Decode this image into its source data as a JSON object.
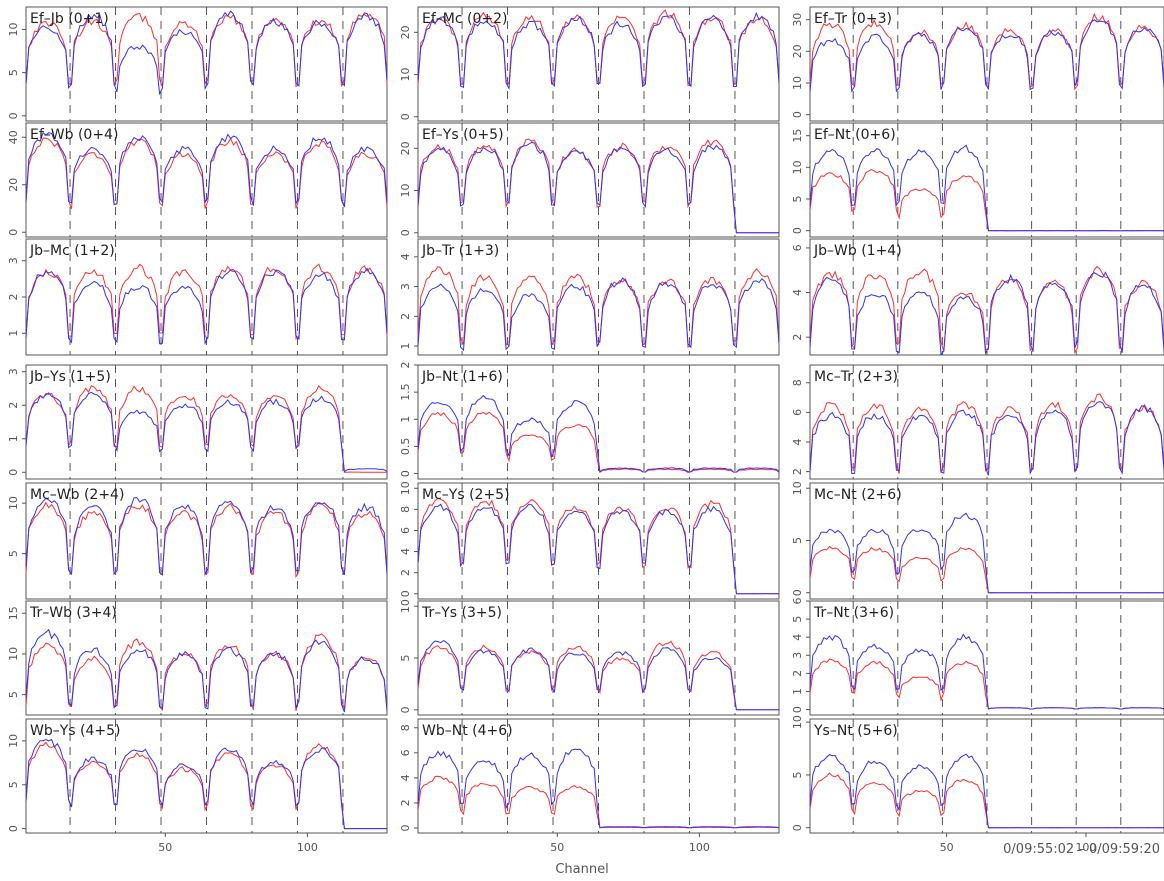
{
  "figure": {
    "xlabel": "Channel",
    "time_range": "0/09:55:02 – 0/09:59:20"
  },
  "colors": {
    "series_a": "#ff3030",
    "series_b": "#3030ff",
    "frame": "#555555",
    "divider": "#555555"
  },
  "chart_data": [
    {
      "type": "line",
      "title": "Ef–Jb (0+1)",
      "xlim": [
        1,
        128
      ],
      "ylim": [
        -0.6,
        12.6
      ],
      "yticks": [
        0,
        5,
        10
      ],
      "xticks": [],
      "divider_x": [
        16.5,
        32.5,
        48.5,
        64.5,
        80.5,
        96.5,
        112.5
      ],
      "series": [
        {
          "color": "red",
          "band_levels": [
            10.8,
            10.9,
            11.5,
            10.8,
            11.4,
            11.2,
            11.0,
            12.0
          ]
        },
        {
          "color": "blue",
          "band_levels": [
            10.3,
            11.6,
            8.0,
            9.8,
            11.7,
            10.9,
            10.8,
            11.6
          ]
        }
      ]
    },
    {
      "type": "line",
      "title": "Ef–Mc (0+2)",
      "xlim": [
        1,
        128
      ],
      "ylim": [
        -1,
        26
      ],
      "yticks": [
        0,
        10,
        20
      ],
      "xticks": [],
      "divider_x": [
        16.5,
        32.5,
        48.5,
        64.5,
        80.5,
        96.5,
        112.5
      ],
      "series": [
        {
          "color": "red",
          "band_levels": [
            23.0,
            23.8,
            23.8,
            23.6,
            23.4,
            24.4,
            23.5,
            23.3
          ]
        },
        {
          "color": "blue",
          "band_levels": [
            23.1,
            23.0,
            22.2,
            23.4,
            22.0,
            23.6,
            23.5,
            23.7
          ]
        }
      ]
    },
    {
      "type": "line",
      "title": "Ef–Tr (0+3)",
      "xlim": [
        1,
        128
      ],
      "ylim": [
        -2,
        34
      ],
      "yticks": [
        0,
        10,
        20,
        30
      ],
      "xticks": [],
      "divider_x": [
        16.5,
        32.5,
        48.5,
        64.5,
        80.5,
        96.5,
        112.5
      ],
      "series": [
        {
          "color": "red",
          "band_levels": [
            28.5,
            29.0,
            26.0,
            28.0,
            26.5,
            26.5,
            31.0,
            27.5
          ]
        },
        {
          "color": "blue",
          "band_levels": [
            23.5,
            24.5,
            25.0,
            27.5,
            25.5,
            26.0,
            29.5,
            27.5
          ]
        }
      ]
    },
    {
      "type": "line",
      "title": "Ef–Wb (0+4)",
      "xlim": [
        1,
        128
      ],
      "ylim": [
        -2,
        46
      ],
      "yticks": [
        0,
        20,
        40
      ],
      "xticks": [],
      "divider_x": [
        16.5,
        32.5,
        48.5,
        64.5,
        80.5,
        96.5,
        112.5
      ],
      "series": [
        {
          "color": "red",
          "band_levels": [
            39.0,
            33.0,
            38.0,
            33.0,
            38.5,
            33.0,
            37.5,
            33.0
          ]
        },
        {
          "color": "blue",
          "band_levels": [
            41.0,
            35.0,
            40.0,
            35.0,
            40.0,
            35.0,
            39.5,
            35.0
          ]
        }
      ]
    },
    {
      "type": "line",
      "title": "Ef–Ys (0+5)",
      "xlim": [
        1,
        128
      ],
      "ylim": [
        -1,
        26
      ],
      "yticks": [
        0,
        10,
        20
      ],
      "xticks": [],
      "divider_x": [
        16.5,
        32.5,
        48.5,
        64.5,
        80.5,
        96.5,
        112.5
      ],
      "series": [
        {
          "color": "red",
          "band_levels": [
            20.5,
            20.5,
            21.5,
            19.5,
            20.5,
            20.5,
            21.5,
            0.0
          ]
        },
        {
          "color": "blue",
          "band_levels": [
            20.0,
            20.0,
            21.0,
            19.0,
            20.0,
            19.5,
            20.5,
            0.0
          ]
        }
      ]
    },
    {
      "type": "line",
      "title": "Ef–Nt (0+6)",
      "xlim": [
        1,
        128
      ],
      "ylim": [
        -1,
        17
      ],
      "yticks": [
        0,
        5,
        10,
        15
      ],
      "xticks": [],
      "divider_x": [
        16.5,
        32.5,
        48.5,
        64.5,
        80.5,
        96.5,
        112.5
      ],
      "series": [
        {
          "color": "red",
          "band_levels": [
            9.0,
            9.5,
            6.5,
            8.5,
            0.0,
            0.0,
            0.0,
            0.0
          ]
        },
        {
          "color": "blue",
          "band_levels": [
            12.5,
            12.5,
            12.5,
            13.0,
            0.0,
            0.0,
            0.0,
            0.0
          ]
        }
      ]
    },
    {
      "type": "line",
      "title": "Jb–Mc (1+2)",
      "xlim": [
        1,
        128
      ],
      "ylim": [
        0.4,
        3.6
      ],
      "yticks": [
        1,
        2,
        3
      ],
      "xticks": [],
      "divider_x": [
        16.5,
        32.5,
        48.5,
        64.5,
        80.5,
        96.5,
        112.5
      ],
      "series": [
        {
          "color": "red",
          "band_levels": [
            2.7,
            2.7,
            2.8,
            2.7,
            2.8,
            2.8,
            2.8,
            2.8
          ]
        },
        {
          "color": "blue",
          "band_levels": [
            2.7,
            2.4,
            2.3,
            2.3,
            2.7,
            2.7,
            2.6,
            2.7
          ]
        }
      ]
    },
    {
      "type": "line",
      "title": "Jb–Tr (1+3)",
      "xlim": [
        1,
        128
      ],
      "ylim": [
        0.7,
        4.6
      ],
      "yticks": [
        1,
        2,
        3,
        4
      ],
      "xticks": [],
      "divider_x": [
        16.5,
        32.5,
        48.5,
        64.5,
        80.5,
        96.5,
        112.5
      ],
      "series": [
        {
          "color": "red",
          "band_levels": [
            3.6,
            3.3,
            3.3,
            3.3,
            3.2,
            3.2,
            3.2,
            3.5
          ]
        },
        {
          "color": "blue",
          "band_levels": [
            3.0,
            2.9,
            2.7,
            3.0,
            3.2,
            3.1,
            3.1,
            3.2
          ]
        }
      ]
    },
    {
      "type": "line",
      "title": "Jb–Wb (1+4)",
      "xlim": [
        1,
        128
      ],
      "ylim": [
        1.2,
        6.4
      ],
      "yticks": [
        2,
        4,
        6
      ],
      "xticks": [],
      "divider_x": [
        16.5,
        32.5,
        48.5,
        64.5,
        80.5,
        96.5,
        112.5
      ],
      "series": [
        {
          "color": "red",
          "band_levels": [
            4.8,
            4.8,
            5.0,
            4.0,
            4.6,
            4.4,
            5.0,
            4.4
          ]
        },
        {
          "color": "blue",
          "band_levels": [
            4.6,
            4.0,
            4.0,
            3.8,
            4.6,
            4.4,
            4.9,
            4.3
          ]
        }
      ]
    },
    {
      "type": "line",
      "title": "Jb–Ys (1+5)",
      "xlim": [
        1,
        128
      ],
      "ylim": [
        -0.2,
        3.2
      ],
      "yticks": [
        0,
        1,
        2,
        3
      ],
      "xticks": [],
      "divider_x": [
        16.5,
        32.5,
        48.5,
        64.5,
        80.5,
        96.5,
        112.5
      ],
      "series": [
        {
          "color": "red",
          "band_levels": [
            2.3,
            2.5,
            2.5,
            2.3,
            2.3,
            2.3,
            2.5,
            0.0
          ]
        },
        {
          "color": "blue",
          "band_levels": [
            2.3,
            2.3,
            1.8,
            2.0,
            2.1,
            2.1,
            2.2,
            0.1
          ]
        }
      ]
    },
    {
      "type": "line",
      "title": "Jb–Nt (1+6)",
      "xlim": [
        1,
        128
      ],
      "ylim": [
        -0.1,
        2.0
      ],
      "yticks": [
        0,
        0.5,
        1,
        1.5,
        2
      ],
      "xticks": [],
      "divider_x": [
        16.5,
        32.5,
        48.5,
        64.5,
        80.5,
        96.5,
        112.5
      ],
      "series": [
        {
          "color": "red",
          "band_levels": [
            1.1,
            1.1,
            0.7,
            0.9,
            0.08,
            0.08,
            0.08,
            0.08
          ]
        },
        {
          "color": "blue",
          "band_levels": [
            1.3,
            1.4,
            1.0,
            1.3,
            0.1,
            0.1,
            0.1,
            0.1
          ]
        }
      ]
    },
    {
      "type": "line",
      "title": "Mc–Tr (2+3)",
      "xlim": [
        1,
        128
      ],
      "ylim": [
        1.5,
        9.2
      ],
      "yticks": [
        2,
        4,
        6,
        8
      ],
      "xticks": [],
      "divider_x": [
        16.5,
        32.5,
        48.5,
        64.5,
        80.5,
        96.5,
        112.5
      ],
      "series": [
        {
          "color": "red",
          "band_levels": [
            6.5,
            6.5,
            6.2,
            6.5,
            6.2,
            6.5,
            7.0,
            6.3
          ]
        },
        {
          "color": "blue",
          "band_levels": [
            5.8,
            5.8,
            5.8,
            6.0,
            5.8,
            6.0,
            6.8,
            6.3
          ]
        }
      ]
    },
    {
      "type": "line",
      "title": "Mc–Wb (2+4)",
      "xlim": [
        1,
        128
      ],
      "ylim": [
        0.5,
        12
      ],
      "yticks": [
        5,
        10
      ],
      "xticks": [],
      "divider_x": [
        16.5,
        32.5,
        48.5,
        64.5,
        80.5,
        96.5,
        112.5
      ],
      "series": [
        {
          "color": "red",
          "band_levels": [
            9.8,
            9.0,
            9.8,
            9.0,
            9.6,
            9.0,
            9.8,
            9.0
          ]
        },
        {
          "color": "blue",
          "band_levels": [
            10.4,
            9.6,
            10.4,
            9.6,
            10.2,
            9.6,
            10.2,
            9.6
          ]
        }
      ]
    },
    {
      "type": "line",
      "title": "Mc–Ys (2+5)",
      "xlim": [
        1,
        128
      ],
      "ylim": [
        -0.5,
        10.5
      ],
      "yticks": [
        0,
        2,
        4,
        6,
        8,
        10
      ],
      "xticks": [],
      "divider_x": [
        16.5,
        32.5,
        48.5,
        64.5,
        80.5,
        96.5,
        112.5
      ],
      "series": [
        {
          "color": "red",
          "band_levels": [
            8.8,
            8.8,
            8.8,
            8.2,
            8.2,
            8.2,
            8.6,
            0.0
          ]
        },
        {
          "color": "blue",
          "band_levels": [
            8.2,
            8.2,
            8.2,
            7.8,
            7.8,
            7.8,
            8.0,
            0.0
          ]
        }
      ]
    },
    {
      "type": "line",
      "title": "Mc–Nt (2+6)",
      "xlim": [
        1,
        128
      ],
      "ylim": [
        -0.6,
        10.5
      ],
      "yticks": [
        0,
        5,
        10
      ],
      "xticks": [],
      "divider_x": [
        16.5,
        32.5,
        48.5,
        64.5,
        80.5,
        96.5,
        112.5
      ],
      "series": [
        {
          "color": "red",
          "band_levels": [
            4.3,
            4.2,
            3.3,
            4.2,
            0.0,
            0.0,
            0.0,
            0.0
          ]
        },
        {
          "color": "blue",
          "band_levels": [
            6.0,
            6.0,
            6.0,
            7.5,
            0.0,
            0.0,
            0.0,
            0.0
          ]
        }
      ]
    },
    {
      "type": "line",
      "title": "Tr–Wb (3+4)",
      "xlim": [
        1,
        128
      ],
      "ylim": [
        2.5,
        16.5
      ],
      "yticks": [
        5,
        10,
        15
      ],
      "xticks": [],
      "divider_x": [
        16.5,
        32.5,
        48.5,
        64.5,
        80.5,
        96.5,
        112.5
      ],
      "series": [
        {
          "color": "red",
          "band_levels": [
            11.0,
            9.5,
            11.5,
            10.0,
            11.0,
            10.0,
            12.0,
            9.5
          ]
        },
        {
          "color": "blue",
          "band_levels": [
            12.5,
            10.5,
            10.5,
            10.0,
            10.5,
            10.0,
            11.5,
            9.5
          ]
        }
      ]
    },
    {
      "type": "line",
      "title": "Tr–Ys (3+5)",
      "xlim": [
        1,
        128
      ],
      "ylim": [
        -0.5,
        10.5
      ],
      "yticks": [
        0,
        5,
        10
      ],
      "xticks": [],
      "divider_x": [
        16.5,
        32.5,
        48.5,
        64.5,
        80.5,
        96.5,
        112.5
      ],
      "series": [
        {
          "color": "red",
          "band_levels": [
            6.0,
            6.0,
            5.6,
            6.0,
            5.0,
            6.5,
            5.5,
            0.0
          ]
        },
        {
          "color": "blue",
          "band_levels": [
            6.5,
            5.7,
            5.8,
            5.5,
            5.5,
            5.8,
            5.0,
            0.0
          ]
        }
      ]
    },
    {
      "type": "line",
      "title": "Tr–Nt (3+6)",
      "xlim": [
        1,
        128
      ],
      "ylim": [
        -0.3,
        6
      ],
      "yticks": [
        0,
        1,
        2,
        3,
        4,
        5,
        6
      ],
      "xticks": [],
      "divider_x": [
        16.5,
        32.5,
        48.5,
        64.5,
        80.5,
        96.5,
        112.5
      ],
      "series": [
        {
          "color": "red",
          "band_levels": [
            2.7,
            2.6,
            1.8,
            2.6,
            0.1,
            0.1,
            0.1,
            0.1
          ]
        },
        {
          "color": "blue",
          "band_levels": [
            4.0,
            3.5,
            3.3,
            4.0,
            0.1,
            0.1,
            0.1,
            0.1
          ]
        }
      ]
    },
    {
      "type": "line",
      "title": "Wb–Ys (4+5)",
      "xlim": [
        1,
        128
      ],
      "ylim": [
        -0.5,
        12.5
      ],
      "yticks": [
        0,
        5,
        10
      ],
      "xticks": [
        50,
        100
      ],
      "divider_x": [
        16.5,
        32.5,
        48.5,
        64.5,
        80.5,
        96.5,
        112.5
      ],
      "series": [
        {
          "color": "red",
          "band_levels": [
            9.5,
            7.5,
            8.5,
            6.8,
            8.5,
            7.2,
            9.5,
            0.0
          ]
        },
        {
          "color": "blue",
          "band_levels": [
            10.0,
            8.0,
            9.0,
            7.2,
            9.0,
            7.6,
            9.0,
            0.0
          ]
        }
      ]
    },
    {
      "type": "line",
      "title": "Wb–Nt (4+6)",
      "xlim": [
        1,
        128
      ],
      "ylim": [
        -0.4,
        8.7
      ],
      "yticks": [
        0,
        2,
        4,
        6,
        8
      ],
      "xticks": [
        50,
        100
      ],
      "divider_x": [
        16.5,
        32.5,
        48.5,
        64.5,
        80.5,
        96.5,
        112.5
      ],
      "series": [
        {
          "color": "red",
          "band_levels": [
            4.0,
            3.5,
            3.2,
            3.3,
            0.05,
            0.05,
            0.05,
            0.05
          ]
        },
        {
          "color": "blue",
          "band_levels": [
            6.0,
            5.3,
            5.8,
            6.2,
            0.1,
            0.1,
            0.1,
            0.1
          ]
        }
      ]
    },
    {
      "type": "line",
      "title": "Ys–Nt (5+6)",
      "xlim": [
        1,
        128
      ],
      "ylim": [
        -0.5,
        10.3
      ],
      "yticks": [
        0,
        5,
        10
      ],
      "xticks": [
        50,
        100
      ],
      "divider_x": [
        16.5,
        32.5,
        48.5,
        64.5,
        80.5,
        96.5,
        112.5
      ],
      "series": [
        {
          "color": "red",
          "band_levels": [
            5.0,
            4.3,
            3.5,
            4.5,
            0.0,
            0.0,
            0.0,
            0.0
          ]
        },
        {
          "color": "blue",
          "band_levels": [
            6.8,
            6.3,
            5.8,
            6.8,
            0.0,
            0.0,
            0.0,
            0.0
          ]
        }
      ]
    }
  ]
}
